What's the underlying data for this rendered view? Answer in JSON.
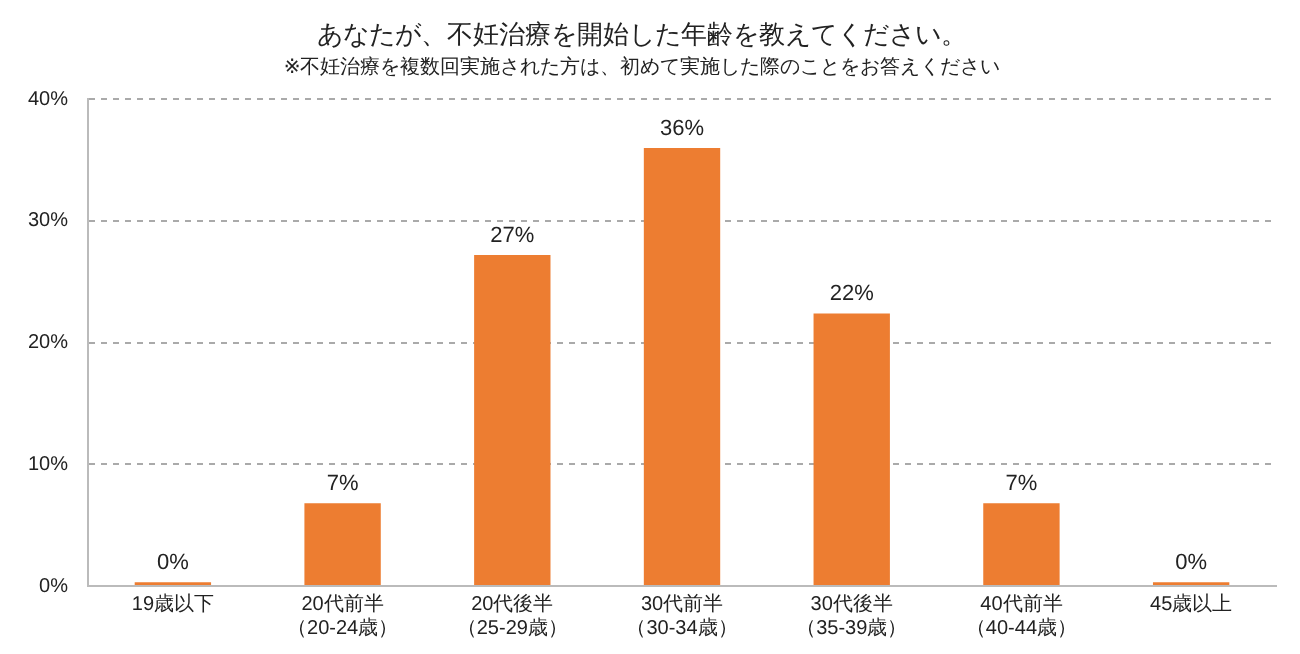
{
  "chart_data": {
    "type": "bar",
    "title": "あなたが、不妊治療を開始した年齢を教えてください。",
    "subtitle": "※不妊治療を複数回実施された方は、初めて実施した際のことをお答えください",
    "categories": [
      "19歳以下",
      "20代前半（20-24歳）",
      "20代後半（25-29歳）",
      "30代前半（30-34歳）",
      "30代後半（35-39歳）",
      "40代前半（40-44歳）",
      "45歳以上"
    ],
    "values": [
      0.3,
      6.8,
      27.2,
      36,
      22.4,
      6.8,
      0.3
    ],
    "value_labels": [
      "0%",
      "7%",
      "27%",
      "36%",
      "22%",
      "7%",
      "0%"
    ],
    "color": "#ed7d31",
    "ylim": [
      0,
      40
    ],
    "yticks": [
      {
        "value": 0,
        "label": "0%"
      },
      {
        "value": 10,
        "label": "10%"
      },
      {
        "value": 20,
        "label": "20%"
      },
      {
        "value": 30,
        "label": "30%"
      },
      {
        "value": 40,
        "label": "40%"
      }
    ],
    "grid": "y"
  }
}
